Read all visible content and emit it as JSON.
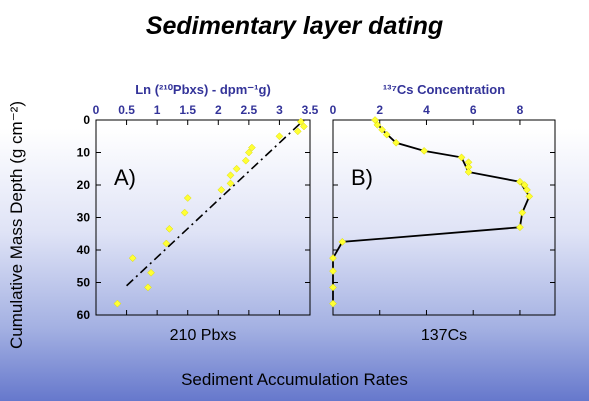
{
  "title": "Sedimentary layer dating",
  "y_axis_label": "Cumulative Mass Depth (g cm⁻²)",
  "bottom_label": "Sediment Accumulation Rates",
  "colors": {
    "axis_label_blue": "#333399",
    "marker_yellow": "#ffff33",
    "line": "#000000"
  },
  "chart_data": [
    {
      "type": "scatter",
      "panel_letter": "A)",
      "title": "Ln (²¹⁰Pbxs) - dpm⁻¹g)",
      "xlabel": "210 Pbxs",
      "ylabel": "Cumulative Mass Depth (g cm⁻²)",
      "x_axis_position": "top",
      "y_inverted": true,
      "xlim": [
        0,
        3.5
      ],
      "ylim": [
        0,
        60
      ],
      "x_ticks": [
        "0",
        "0.5",
        "1",
        "1.5",
        "2",
        "2.5",
        "3",
        "3.5"
      ],
      "y_ticks": [
        "0",
        "10",
        "20",
        "30",
        "40",
        "50",
        "60"
      ],
      "points": [
        {
          "x": 3.35,
          "y": 0.5
        },
        {
          "x": 3.4,
          "y": 2
        },
        {
          "x": 3.3,
          "y": 3.5
        },
        {
          "x": 3.0,
          "y": 5
        },
        {
          "x": 2.55,
          "y": 8.5
        },
        {
          "x": 2.5,
          "y": 10
        },
        {
          "x": 2.45,
          "y": 12.5
        },
        {
          "x": 2.3,
          "y": 15
        },
        {
          "x": 2.2,
          "y": 17
        },
        {
          "x": 2.2,
          "y": 19.5
        },
        {
          "x": 2.05,
          "y": 21.5
        },
        {
          "x": 1.5,
          "y": 24
        },
        {
          "x": 1.45,
          "y": 28.5
        },
        {
          "x": 1.2,
          "y": 33.5
        },
        {
          "x": 1.15,
          "y": 38
        },
        {
          "x": 0.6,
          "y": 42.5
        },
        {
          "x": 0.9,
          "y": 47
        },
        {
          "x": 0.85,
          "y": 51.5
        },
        {
          "x": 0.35,
          "y": 56.5
        }
      ],
      "fit_line": [
        {
          "x": 0.5,
          "y": 51
        },
        {
          "x": 3.4,
          "y": 0
        }
      ],
      "fit_style": "dash-dot"
    },
    {
      "type": "line",
      "panel_letter": "B)",
      "title": "¹³⁷Cs Concentration",
      "xlabel": "137Cs",
      "x_axis_position": "top",
      "y_inverted": true,
      "xlim": [
        0,
        9.5
      ],
      "ylim": [
        0,
        60
      ],
      "x_ticks": [
        "0",
        "2",
        "4",
        "6",
        "8"
      ],
      "y_ticks": [],
      "points": [
        {
          "x": 1.8,
          "y": 0
        },
        {
          "x": 1.9,
          "y": 1.5
        },
        {
          "x": 2.1,
          "y": 3
        },
        {
          "x": 2.3,
          "y": 4.5
        },
        {
          "x": 2.7,
          "y": 7
        },
        {
          "x": 3.9,
          "y": 9.5
        },
        {
          "x": 5.5,
          "y": 11.5
        },
        {
          "x": 5.8,
          "y": 13
        },
        {
          "x": 5.8,
          "y": 14.5
        },
        {
          "x": 5.8,
          "y": 16
        },
        {
          "x": 8.0,
          "y": 19
        },
        {
          "x": 8.2,
          "y": 20
        },
        {
          "x": 8.3,
          "y": 21.5
        },
        {
          "x": 8.4,
          "y": 23.5
        },
        {
          "x": 8.1,
          "y": 28.5
        },
        {
          "x": 8.0,
          "y": 33
        },
        {
          "x": 0.4,
          "y": 37.5
        },
        {
          "x": 0.0,
          "y": 42.5
        },
        {
          "x": 0.0,
          "y": 46.5
        },
        {
          "x": 0.0,
          "y": 51.5
        },
        {
          "x": 0.0,
          "y": 56.5
        }
      ],
      "profile_line": [
        {
          "x": 1.8,
          "y": 0
        },
        {
          "x": 2.1,
          "y": 3
        },
        {
          "x": 2.7,
          "y": 7
        },
        {
          "x": 3.9,
          "y": 9.5
        },
        {
          "x": 5.5,
          "y": 11.5
        },
        {
          "x": 5.8,
          "y": 16
        },
        {
          "x": 8.0,
          "y": 19
        },
        {
          "x": 8.4,
          "y": 23.5
        },
        {
          "x": 8.1,
          "y": 28.5
        },
        {
          "x": 8.0,
          "y": 33
        },
        {
          "x": 0.4,
          "y": 37.5
        },
        {
          "x": 0.0,
          "y": 42.5
        },
        {
          "x": 0.0,
          "y": 56.5
        }
      ]
    }
  ]
}
